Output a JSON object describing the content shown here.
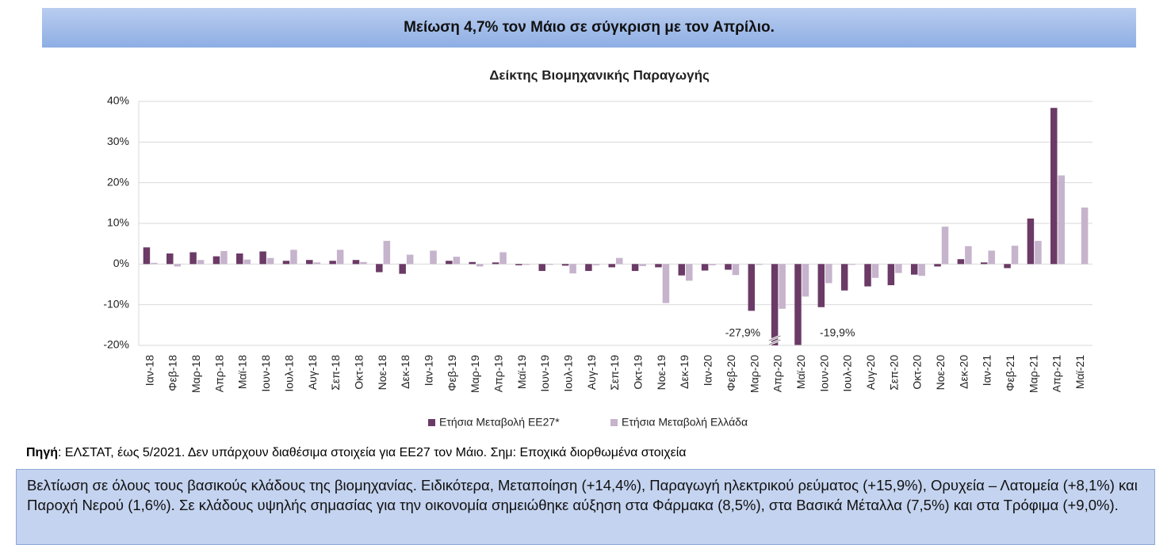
{
  "header": {
    "title": "Μείωση 4,7% τον Μάιο σε σύγκριση με τον Απρίλιο."
  },
  "chart_data": {
    "type": "bar",
    "title": "Δείκτης Βιομηχανικής Παραγωγής",
    "categories": [
      "Ιαν-18",
      "Φεβ-18",
      "Μαρ-18",
      "Απρ-18",
      "Μαϊ-18",
      "Ιουν-18",
      "Ιουλ-18",
      "Αυγ-18",
      "Σεπ-18",
      "Οκτ-18",
      "Νοε-18",
      "Δεκ-18",
      "Ιαν-19",
      "Φεβ-19",
      "Μαρ-19",
      "Απρ-19",
      "Μαϊ-19",
      "Ιουν-19",
      "Ιουλ-19",
      "Αυγ-19",
      "Σεπ-19",
      "Οκτ-19",
      "Νοε-19",
      "Δεκ-19",
      "Ιαν-20",
      "Φεβ-20",
      "Μαρ-20",
      "Απρ-20",
      "Μαϊ-20",
      "Ιουν-20",
      "Ιουλ-20",
      "Αυγ-20",
      "Σεπ-20",
      "Οκτ-20",
      "Νοε-20",
      "Δεκ-20",
      "Ιαν-21",
      "Φεβ-21",
      "Μαρ-21",
      "Απρ-21",
      "Μαϊ-21"
    ],
    "series": [
      {
        "name": "Ετήσια Μεταβολή ΕΕ27*",
        "color": "#6b3a66",
        "values": [
          4.1,
          2.6,
          2.9,
          1.9,
          2.6,
          3.1,
          0.8,
          1.0,
          0.8,
          1.0,
          -2.0,
          -2.4,
          0.0,
          0.8,
          0.5,
          0.4,
          -0.3,
          -1.7,
          -0.4,
          -1.7,
          -0.8,
          -1.7,
          -0.8,
          -2.8,
          -1.6,
          -1.4,
          -11.5,
          -27.9,
          -19.9,
          -10.6,
          -6.5,
          -5.5,
          -5.2,
          -2.6,
          -0.6,
          1.2,
          0.4,
          -1.0,
          11.2,
          38.4,
          null
        ],
        "value_labels": [
          null,
          null,
          null,
          null,
          null,
          null,
          null,
          null,
          null,
          null,
          null,
          null,
          null,
          null,
          null,
          null,
          null,
          null,
          null,
          null,
          null,
          null,
          null,
          null,
          null,
          null,
          null,
          "-27,9%",
          "-19,9%",
          null,
          null,
          null,
          null,
          null,
          null,
          null,
          null,
          null,
          null,
          null,
          null
        ]
      },
      {
        "name": "Ετήσια Μεταβολή Ελλάδα",
        "color": "#c6b3cc",
        "values": [
          0.3,
          -0.6,
          1.0,
          3.2,
          1.1,
          1.5,
          3.5,
          0.4,
          3.5,
          0.5,
          5.7,
          2.3,
          3.3,
          1.8,
          -0.6,
          2.9,
          -0.2,
          -0.2,
          -2.3,
          -0.3,
          1.5,
          -0.5,
          -9.6,
          -4.1,
          -0.3,
          -2.7,
          -0.2,
          -11.0,
          -8.0,
          -4.7,
          -0.2,
          -3.4,
          -2.2,
          -2.9,
          9.2,
          4.4,
          3.3,
          4.5,
          5.7,
          21.8,
          13.9
        ]
      }
    ],
    "ylim": [
      -20,
      40
    ],
    "yticks": [
      {
        "value": -20,
        "label": "-20%"
      },
      {
        "value": -10,
        "label": "-10%"
      },
      {
        "value": 0,
        "label": "0%"
      },
      {
        "value": 10,
        "label": "10%"
      },
      {
        "value": 20,
        "label": "20%"
      },
      {
        "value": 30,
        "label": "30%"
      },
      {
        "value": 40,
        "label": "40%"
      }
    ],
    "grid": true,
    "legend": "bottom"
  },
  "source": {
    "label": "Πηγή",
    "text": ": ΕΛΣΤΑΤ, έως 5/2021. Δεν υπάρχουν διαθέσιμα στοιχεία για ΕΕ27 τον Μάιο.  Σημ: Εποχικά διορθωμένα στοιχεία"
  },
  "note": "Βελτίωση σε όλους τους βασικούς κλάδους της βιομηχανίας. Ειδικότερα, Μεταποίηση (+14,4%), Παραγωγή ηλεκτρικού ρεύματος (+15,9%), Ορυχεία – Λατομεία (+8,1%) και Παροχή Νερού (1,6%). Σε κλάδους υψηλής σημασίας για την οικονομία σημειώθηκε αύξηση στα Φάρμακα (8,5%), στα Βασικά Μέταλλα (7,5%) και στα Τρόφιμα (+9,0%)."
}
